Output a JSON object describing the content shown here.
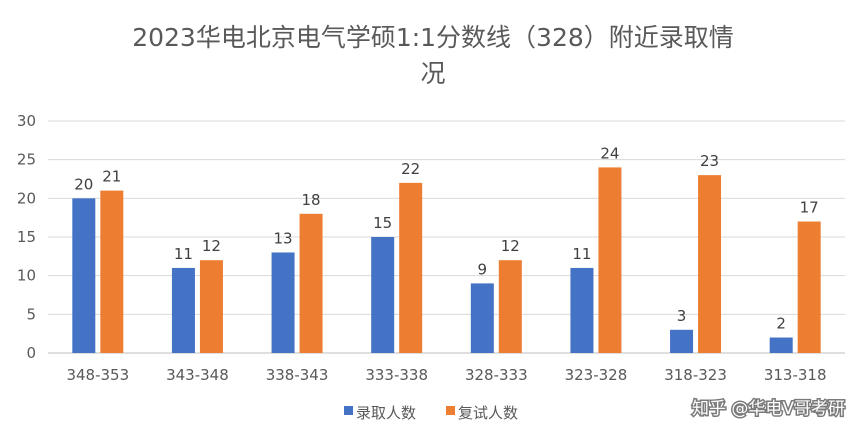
{
  "chart_data": {
    "type": "bar",
    "title_line1": "2023华电北京电气学硕1:1分数线（328）附近录取情",
    "title_line2": "况",
    "categories": [
      "348-353",
      "343-348",
      "338-343",
      "333-338",
      "328-333",
      "323-328",
      "318-323",
      "313-318"
    ],
    "series": [
      {
        "name": "录取人数",
        "values": [
          20,
          11,
          13,
          15,
          9,
          11,
          3,
          2
        ],
        "color": "#4472C4"
      },
      {
        "name": "复试人数",
        "values": [
          21,
          12,
          18,
          22,
          12,
          24,
          23,
          17
        ],
        "color": "#ED7D31"
      }
    ],
    "yticks": [
      "0",
      "5",
      "10",
      "15",
      "20",
      "25",
      "30"
    ],
    "ylim": [
      0,
      30
    ],
    "grid": true,
    "legend_position": "bottom",
    "data_labels": true
  },
  "watermark": {
    "text": "知乎 @华电V哥考研"
  }
}
